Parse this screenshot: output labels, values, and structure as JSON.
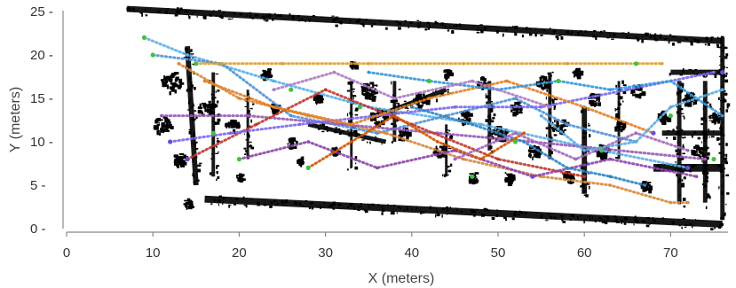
{
  "chart_data": {
    "type": "scatter",
    "title": "",
    "xlabel": "X (meters)",
    "ylabel": "Y (meters)",
    "xlim": [
      0,
      78
    ],
    "ylim": [
      0,
      26
    ],
    "x_ticks": [
      0,
      10,
      20,
      30,
      40,
      50,
      60,
      70
    ],
    "y_ticks": [
      0,
      5,
      10,
      15,
      20,
      25
    ],
    "x_tick_labels": [
      "0",
      "10",
      "20",
      "30",
      "40",
      "50",
      "60",
      "70"
    ],
    "y_tick_labels": [
      "0 -",
      "5 -",
      "10 -",
      "15 -",
      "20 -",
      "25 -"
    ],
    "background_map": {
      "description_free": true,
      "color": "#000000",
      "walls": [
        {
          "from": [
            7,
            25.3
          ],
          "to": [
            76,
            21.6
          ],
          "thickness": 0.7
        },
        {
          "from": [
            16,
            3.4
          ],
          "to": [
            76,
            0.5
          ],
          "thickness": 0.8
        },
        {
          "from": [
            14,
            21
          ],
          "to": [
            15,
            5
          ],
          "thickness": 0.6
        },
        {
          "from": [
            76,
            22
          ],
          "to": [
            76,
            1
          ],
          "thickness": 0.5
        },
        {
          "from": [
            68,
            7
          ],
          "to": [
            76,
            7
          ],
          "thickness": 0.9
        },
        {
          "from": [
            69,
            11
          ],
          "to": [
            76,
            11
          ],
          "thickness": 0.6
        },
        {
          "from": [
            70,
            18
          ],
          "to": [
            76,
            18
          ],
          "thickness": 0.6
        },
        {
          "from": [
            71,
            17
          ],
          "to": [
            71,
            3
          ],
          "thickness": 0.5
        },
        {
          "from": [
            74,
            17
          ],
          "to": [
            74,
            3
          ],
          "thickness": 0.5
        },
        {
          "from": [
            60,
            14
          ],
          "to": [
            60,
            4
          ],
          "thickness": 0.6
        },
        {
          "from": [
            56,
            18
          ],
          "to": [
            56,
            8
          ],
          "thickness": 0.4
        },
        {
          "from": [
            49,
            17
          ],
          "to": [
            49,
            9
          ],
          "thickness": 0.4
        },
        {
          "from": [
            36,
            13
          ],
          "to": [
            44,
            16
          ],
          "thickness": 0.5
        },
        {
          "from": [
            38,
            17
          ],
          "to": [
            38,
            10
          ],
          "thickness": 0.4
        },
        {
          "from": [
            28,
            12
          ],
          "to": [
            37,
            10
          ],
          "thickness": 0.5
        },
        {
          "from": [
            17,
            18
          ],
          "to": [
            17,
            6
          ],
          "thickness": 0.4
        },
        {
          "from": [
            21,
            16
          ],
          "to": [
            21,
            8
          ],
          "thickness": 0.3
        },
        {
          "from": [
            33,
            17
          ],
          "to": [
            33,
            7
          ],
          "thickness": 0.3
        },
        {
          "from": [
            44,
            12
          ],
          "to": [
            44,
            6
          ],
          "thickness": 0.3
        },
        {
          "from": [
            64,
            17
          ],
          "to": [
            64,
            8
          ],
          "thickness": 0.3
        }
      ],
      "blobs": [
        [
          12,
          17,
          1.2
        ],
        [
          11,
          12,
          1.0
        ],
        [
          13,
          8,
          0.8
        ],
        [
          16,
          14,
          0.9
        ],
        [
          19,
          12,
          0.7
        ],
        [
          23,
          18,
          0.6
        ],
        [
          26,
          10,
          0.6
        ],
        [
          29,
          15,
          0.5
        ],
        [
          31,
          9,
          0.5
        ],
        [
          35,
          16,
          1.0
        ],
        [
          36,
          13,
          0.9
        ],
        [
          39,
          11,
          0.7
        ],
        [
          41,
          15,
          0.8
        ],
        [
          43,
          9,
          0.6
        ],
        [
          46,
          13,
          0.7
        ],
        [
          48,
          17,
          0.6
        ],
        [
          50,
          11,
          0.9
        ],
        [
          52,
          14,
          0.7
        ],
        [
          54,
          9,
          0.8
        ],
        [
          55,
          17,
          0.7
        ],
        [
          57,
          12,
          0.8
        ],
        [
          58,
          6,
          0.7
        ],
        [
          61,
          15,
          0.7
        ],
        [
          62,
          9,
          0.8
        ],
        [
          64,
          12,
          0.6
        ],
        [
          66,
          16,
          0.7
        ],
        [
          67,
          5,
          0.6
        ],
        [
          69,
          13,
          0.6
        ],
        [
          72,
          15,
          0.8
        ],
        [
          73,
          9,
          0.7
        ],
        [
          75,
          13,
          0.6
        ],
        [
          47,
          6,
          0.6
        ],
        [
          51,
          6,
          0.6
        ],
        [
          27,
          8,
          0.4
        ],
        [
          33,
          19,
          0.4
        ],
        [
          24,
          14,
          0.5
        ],
        [
          44,
          18,
          0.5
        ],
        [
          59,
          18,
          0.5
        ],
        [
          20,
          6,
          0.4
        ],
        [
          14,
          3,
          0.5
        ]
      ]
    },
    "series": [
      {
        "color": "#5bb0e8",
        "x": [
          9,
          14,
          24,
          35,
          48,
          62,
          72
        ],
        "y": [
          22,
          20,
          17,
          14,
          12,
          9,
          7
        ]
      },
      {
        "color": "#4f93d9",
        "x": [
          10,
          18,
          26,
          36,
          44,
          52,
          58,
          66
        ],
        "y": [
          20,
          19,
          13,
          11,
          13,
          15,
          12,
          10
        ]
      },
      {
        "color": "#d98a3a",
        "x": [
          13,
          20,
          28,
          37,
          46,
          55,
          63,
          70,
          72
        ],
        "y": [
          19,
          15,
          13,
          11,
          8,
          6,
          5,
          3,
          3
        ]
      },
      {
        "color": "#e0a030",
        "x": [
          15,
          25,
          35,
          46,
          58,
          69
        ],
        "y": [
          19,
          19,
          19,
          19,
          19,
          19
        ]
      },
      {
        "color": "#9b59b6",
        "x": [
          11,
          21,
          32,
          43,
          54,
          64,
          74
        ],
        "y": [
          13,
          13,
          12,
          11,
          10,
          9,
          8
        ]
      },
      {
        "color": "#c0392b",
        "x": [
          14,
          22,
          30,
          40,
          50,
          60
        ],
        "y": [
          8,
          12,
          16,
          12,
          8,
          6
        ]
      },
      {
        "color": "#7b68ee",
        "x": [
          12,
          19,
          27,
          36,
          45,
          55,
          65,
          75
        ],
        "y": [
          10,
          11,
          12,
          13,
          14,
          14,
          16,
          18
        ]
      },
      {
        "color": "#e67e22",
        "x": [
          16,
          24,
          33,
          42,
          51,
          60,
          68
        ],
        "y": [
          17,
          14,
          12,
          15,
          17,
          14,
          11
        ]
      },
      {
        "color": "#8e44ad",
        "x": [
          20,
          28,
          36,
          45,
          54,
          63,
          73
        ],
        "y": [
          8,
          10,
          7,
          9,
          6,
          8,
          6
        ]
      },
      {
        "color": "#3498db",
        "x": [
          35,
          42,
          50,
          57,
          63,
          70,
          76
        ],
        "y": [
          18,
          17,
          16,
          17,
          16,
          17,
          13
        ]
      },
      {
        "color": "#2e86c1",
        "x": [
          40,
          47,
          53,
          58,
          63,
          67
        ],
        "y": [
          14,
          12,
          10,
          7,
          6,
          5
        ]
      },
      {
        "color": "#d35400",
        "x": [
          28,
          33,
          38,
          43,
          48,
          53
        ],
        "y": [
          7,
          10,
          13,
          10,
          8,
          11
        ]
      },
      {
        "color": "#a569bd",
        "x": [
          45,
          52,
          59,
          66,
          72
        ],
        "y": [
          8,
          11,
          8,
          11,
          9
        ]
      },
      {
        "color": "#5dade2",
        "x": [
          55,
          60,
          66,
          70,
          76
        ],
        "y": [
          13,
          9,
          10,
          14,
          16
        ]
      },
      {
        "color": "#af7ac5",
        "x": [
          24,
          31,
          38,
          47,
          56
        ],
        "y": [
          16,
          18,
          15,
          17,
          14
        ]
      }
    ],
    "markers": [
      {
        "x": 9,
        "y": 22,
        "color": "#3cc43c"
      },
      {
        "x": 10,
        "y": 20,
        "color": "#3cc43c"
      },
      {
        "x": 15,
        "y": 19,
        "color": "#3cc43c"
      },
      {
        "x": 20,
        "y": 8,
        "color": "#3cc43c"
      },
      {
        "x": 28,
        "y": 7,
        "color": "#3cc43c"
      },
      {
        "x": 34,
        "y": 14,
        "color": "#3cc43c"
      },
      {
        "x": 42,
        "y": 17,
        "color": "#3cc43c"
      },
      {
        "x": 47,
        "y": 6,
        "color": "#3cc43c"
      },
      {
        "x": 52,
        "y": 10,
        "color": "#3cc43c"
      },
      {
        "x": 57,
        "y": 17,
        "color": "#3cc43c"
      },
      {
        "x": 62,
        "y": 9,
        "color": "#3cc43c"
      },
      {
        "x": 66,
        "y": 19,
        "color": "#3cc43c"
      },
      {
        "x": 70,
        "y": 13,
        "color": "#3cc43c"
      },
      {
        "x": 75,
        "y": 8,
        "color": "#3cc43c"
      },
      {
        "x": 26,
        "y": 16,
        "color": "#3cc43c"
      },
      {
        "x": 17,
        "y": 11,
        "color": "#3cc43c"
      },
      {
        "x": 14,
        "y": 8,
        "color": "#6c4bd6"
      },
      {
        "x": 12,
        "y": 10,
        "color": "#6c4bd6"
      },
      {
        "x": 72,
        "y": 7,
        "color": "#6c4bd6"
      },
      {
        "x": 76,
        "y": 18,
        "color": "#6c4bd6"
      },
      {
        "x": 54,
        "y": 6,
        "color": "#6c4bd6"
      },
      {
        "x": 68,
        "y": 11,
        "color": "#6c4bd6"
      }
    ]
  }
}
